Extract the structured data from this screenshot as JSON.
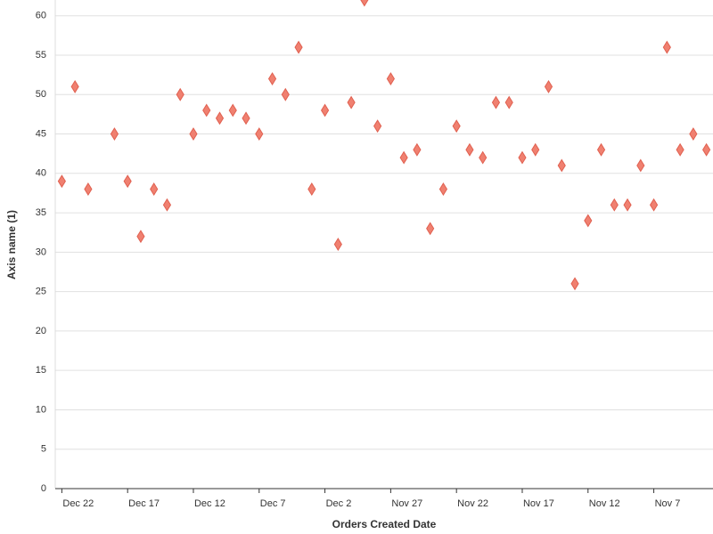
{
  "chart_data": {
    "type": "scatter",
    "x_label": "Orders Created Date",
    "y_label": "Axis name (1)",
    "color": "#f08070",
    "categories": [
      "Dec 22",
      "Dec 21",
      "Dec 20",
      "Dec 19",
      "Dec 18",
      "Dec 17",
      "Dec 16",
      "Dec 15",
      "Dec 14",
      "Dec 13",
      "Dec 12",
      "Dec 11",
      "Dec 10",
      "Dec 9",
      "Dec 8",
      "Dec 7",
      "Dec 6",
      "Dec 5",
      "Dec 4",
      "Dec 3",
      "Dec 2",
      "Dec 1",
      "Nov 30",
      "Nov 29",
      "Nov 28",
      "Nov 27",
      "Nov 26",
      "Nov 25",
      "Nov 24",
      "Nov 23",
      "Nov 22",
      "Nov 21",
      "Nov 20",
      "Nov 19",
      "Nov 18",
      "Nov 17",
      "Nov 16",
      "Nov 15",
      "Nov 14",
      "Nov 13",
      "Nov 12",
      "Nov 11",
      "Nov 10",
      "Nov 9",
      "Nov 8",
      "Nov 7",
      "Nov 6",
      "Nov 5",
      "Nov 4",
      "Nov 3"
    ],
    "values": [
      39,
      51,
      38,
      null,
      45,
      39,
      32,
      38,
      36,
      50,
      45,
      48,
      47,
      48,
      47,
      45,
      52,
      50,
      56,
      38,
      48,
      31,
      49,
      62,
      46,
      52,
      42,
      43,
      33,
      38,
      46,
      43,
      42,
      49,
      49,
      42,
      43,
      51,
      41,
      26,
      34,
      43,
      36,
      36,
      41,
      36,
      56,
      43,
      45,
      43
    ],
    "xticks": [
      "Dec 22",
      "Dec 17",
      "Dec 12",
      "Dec 7",
      "Dec 2",
      "Nov 27",
      "Nov 22",
      "Nov 17",
      "Nov 12",
      "Nov 7"
    ],
    "ylim": [
      0,
      62
    ],
    "yticks": [
      0,
      5,
      10,
      15,
      20,
      25,
      30,
      35,
      40,
      45,
      50,
      55,
      60
    ],
    "grid": true
  }
}
